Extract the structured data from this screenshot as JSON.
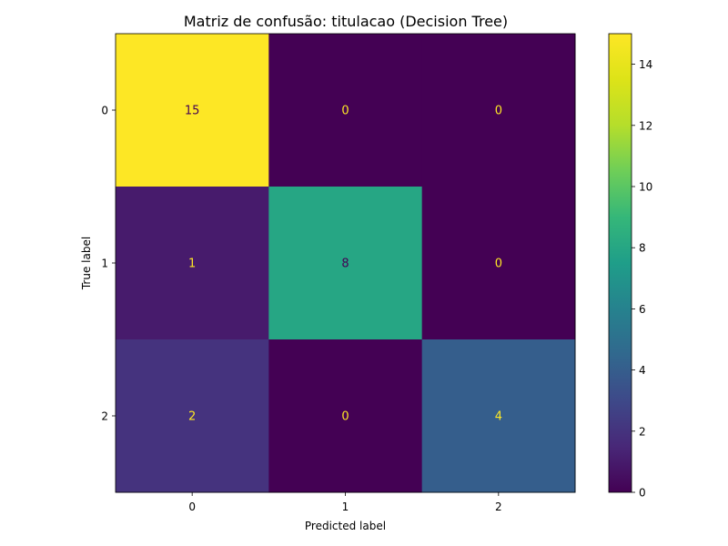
{
  "chart_data": {
    "type": "heatmap",
    "title": "Matriz de confusão: titulacao (Decision Tree)",
    "xlabel": "Predicted label",
    "ylabel": "True label",
    "x_categories": [
      "0",
      "1",
      "2"
    ],
    "y_categories": [
      "0",
      "1",
      "2"
    ],
    "values": [
      [
        15,
        0,
        0
      ],
      [
        1,
        8,
        0
      ],
      [
        2,
        0,
        4
      ]
    ],
    "colormap": "viridis",
    "color_range": [
      0,
      15
    ],
    "colorbar_ticks": [
      "0",
      "2",
      "4",
      "6",
      "8",
      "10",
      "12",
      "14"
    ],
    "annotation_colors": {
      "on_dark": "#fde725",
      "on_light": "#440154"
    },
    "grid": false
  }
}
